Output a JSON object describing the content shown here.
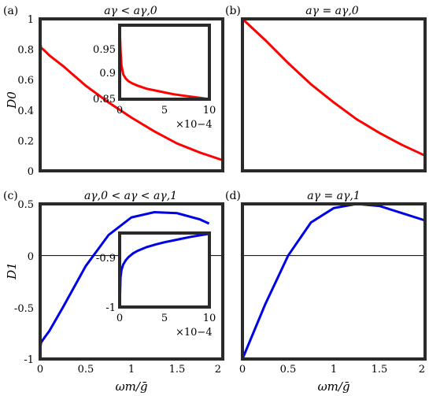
{
  "chart_data": [
    {
      "panel_label": "(a)",
      "type": "line",
      "title": "aγ < aγ,0",
      "ylabel": "D0",
      "xlim": [
        0,
        2
      ],
      "ylim": [
        0,
        1
      ],
      "xticks": [],
      "yticks": [
        "0",
        "0.2",
        "0.4",
        "0.6",
        "0.8",
        "1"
      ],
      "series": [
        {
          "color": "#ff0000",
          "x": [
            0,
            0.001,
            0.002,
            0.005,
            0.01,
            0.05,
            0.1,
            0.25,
            0.5,
            0.75,
            1.0,
            1.25,
            1.5,
            1.75,
            2.0
          ],
          "y": [
            1.0,
            0.85,
            0.84,
            0.83,
            0.81,
            0.79,
            0.76,
            0.69,
            0.56,
            0.45,
            0.35,
            0.26,
            0.18,
            0.12,
            0.07
          ]
        }
      ],
      "inset": {
        "xlim": [
          0,
          10
        ],
        "ylim": [
          0.85,
          0.97
        ],
        "xticks": [
          "0",
          "5",
          "10"
        ],
        "yticks": [
          "0.85",
          "0.9",
          "0.95"
        ],
        "x_multiplier": "×10−4",
        "series": [
          {
            "color": "#ff0000",
            "x": [
              0,
              0.1,
              0.2,
              0.4,
              0.7,
              1,
              1.5,
              2,
              3,
              4,
              5,
              6,
              7,
              8,
              9,
              10
            ],
            "y": [
              0.97,
              0.93,
              0.905,
              0.89,
              0.883,
              0.879,
              0.875,
              0.872,
              0.867,
              0.864,
              0.861,
              0.858,
              0.856,
              0.854,
              0.852,
              0.85
            ]
          }
        ]
      }
    },
    {
      "panel_label": "(b)",
      "type": "line",
      "title": "aγ = aγ,0",
      "xlim": [
        0,
        2
      ],
      "ylim": [
        0,
        1
      ],
      "xticks": [],
      "yticks": [],
      "series": [
        {
          "color": "#ff0000",
          "x": [
            0,
            0.25,
            0.5,
            0.75,
            1.0,
            1.25,
            1.5,
            1.75,
            2.0
          ],
          "y": [
            1.0,
            0.86,
            0.71,
            0.57,
            0.45,
            0.34,
            0.25,
            0.17,
            0.1
          ]
        }
      ]
    },
    {
      "panel_label": "(c)",
      "type": "line",
      "title": "aγ,0 < aγ < aγ,1",
      "ylabel": "D1",
      "xlabel": "ωm/ḡ",
      "xlim": [
        0,
        2
      ],
      "ylim": [
        -1,
        0.5
      ],
      "xticks": [
        "0",
        "0.5",
        "1",
        "1.5",
        "2"
      ],
      "yticks": [
        "-1",
        "-0.5",
        "0",
        "0.5"
      ],
      "hline": 0,
      "series": [
        {
          "color": "#0000e6",
          "x": [
            0,
            0.002,
            0.005,
            0.01,
            0.05,
            0.1,
            0.25,
            0.5,
            0.75,
            1.0,
            1.25,
            1.5,
            1.75,
            1.85
          ],
          "y": [
            -1.0,
            -0.9,
            -0.87,
            -0.84,
            -0.79,
            -0.73,
            -0.5,
            -0.1,
            0.2,
            0.37,
            0.42,
            0.41,
            0.35,
            0.31
          ]
        }
      ],
      "inset": {
        "xlim": [
          0,
          10
        ],
        "ylim": [
          -1,
          -0.8
        ],
        "xticks": [
          "0",
          "5",
          "10"
        ],
        "yticks": [
          "-1",
          "-0.9"
        ],
        "x_multiplier": "×10−4",
        "series": [
          {
            "color": "#0000e6",
            "x": [
              0,
              0.05,
              0.1,
              0.2,
              0.4,
              0.7,
              1,
              1.5,
              2,
              3,
              4,
              5,
              6,
              7,
              8,
              9,
              10
            ],
            "y": [
              -1.0,
              -0.96,
              -0.92,
              -0.9,
              -0.885,
              -0.873,
              -0.865,
              -0.855,
              -0.848,
              -0.838,
              -0.831,
              -0.825,
              -0.82,
              -0.815,
              -0.81,
              -0.806,
              -0.802
            ]
          }
        ]
      }
    },
    {
      "panel_label": "(d)",
      "type": "line",
      "title": "aγ = aγ,1",
      "xlabel": "ωm/ḡ",
      "xlim": [
        0,
        2
      ],
      "ylim": [
        -1,
        0.5
      ],
      "xticks": [
        "0",
        "0.5",
        "1",
        "1.5",
        "2"
      ],
      "yticks": [],
      "hline": 0,
      "series": [
        {
          "color": "#0000e6",
          "x": [
            0,
            0.25,
            0.5,
            0.75,
            1.0,
            1.25,
            1.5,
            1.75,
            2.0
          ],
          "y": [
            -1.0,
            -0.47,
            0.0,
            0.32,
            0.46,
            0.5,
            0.48,
            0.41,
            0.34
          ]
        }
      ]
    }
  ]
}
